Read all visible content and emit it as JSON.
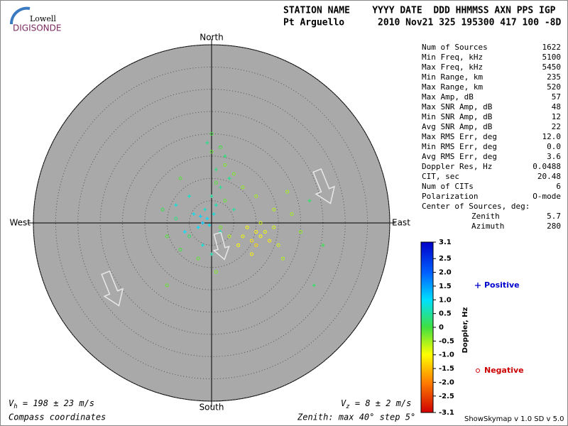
{
  "logo": {
    "top": "Lowell",
    "bottom": "DIGISONDE"
  },
  "header": {
    "labels": "STATION NAME    YYYY DATE  DDD HHMMSS AXN PPS IGP",
    "values": "Pt Arguello      2010 Nov21 325 195300 417 100 -8D"
  },
  "stats": {
    "rows": [
      [
        "Num of Sources",
        "1622"
      ],
      [
        "Min Freq, kHz",
        "5100"
      ],
      [
        "Max Freq, kHz",
        "5450"
      ],
      [
        "Min Range, km",
        "235"
      ],
      [
        "Max Range, km",
        "520"
      ],
      [
        "Max Amp, dB",
        "57"
      ],
      [
        "Max SNR Amp, dB",
        "48"
      ],
      [
        "Min SNR Amp, dB",
        "12"
      ],
      [
        "Avg SNR Amp, dB",
        "22"
      ],
      [
        "Max RMS Err, deg",
        "12.0"
      ],
      [
        "Min RMS Err, deg",
        "0.0"
      ],
      [
        "Avg RMS Err, deg",
        "3.6"
      ],
      [
        "Doppler Res, Hz",
        "0.0488"
      ],
      [
        "CIT, sec",
        "20.48"
      ],
      [
        "Num of CITs",
        "6"
      ],
      [
        "Polarization",
        "O-mode"
      ]
    ],
    "center_title": "Center of Sources, deg:",
    "center_rows": [
      [
        "Zenith",
        "5.7"
      ],
      [
        "Azimuth",
        "280"
      ]
    ]
  },
  "footer": {
    "vh": {
      "symbol": "V",
      "sub": "h",
      "text": " = 198 ± 23 m/s"
    },
    "vz": {
      "symbol": "V",
      "sub": "z",
      "text": " = 8 ± 2 m/s"
    },
    "coords": "Compass coordinates",
    "zenith": "Zenith: max 40°  step 5°",
    "version": "ShowSkymap v 1.0   SD v 5.0"
  },
  "chart_data": {
    "type": "scatter",
    "directions": {
      "north": "North",
      "south": "South",
      "west": "West",
      "east": "East"
    },
    "rlim": [
      0,
      40
    ],
    "rticks": [
      5,
      10,
      15,
      20,
      25,
      30,
      35,
      40
    ],
    "grid": true,
    "colorbar": {
      "label": "Doppler, Hz",
      "clim": [
        -3.1,
        3.1
      ],
      "ticks": [
        3.1,
        2.5,
        {
          "value": 2,
          "label": "2.0"
        },
        1.5,
        {
          "value": 1,
          "label": "1.0"
        },
        0.5,
        0,
        -0.5,
        {
          "value": -1,
          "label": "-1.0"
        },
        -1.5,
        {
          "value": -2,
          "label": "-2.0"
        },
        -2.5,
        -3.1
      ]
    },
    "series": [
      {
        "name": "Positive",
        "marker": "+",
        "color": "#0000cc",
        "x": [
          -1,
          -2,
          -0.5,
          -2.5,
          0.5,
          -3,
          -1.5,
          1,
          0,
          -4,
          2,
          1,
          -1,
          3,
          22,
          25,
          23,
          -8,
          -6,
          5,
          -2,
          0,
          4,
          -5,
          2
        ],
        "y": [
          1,
          0,
          -0.5,
          1.5,
          2,
          -1,
          3,
          4,
          6,
          2,
          8,
          12,
          18,
          15,
          5,
          -5,
          -14,
          4,
          -2,
          3,
          -5,
          -7,
          10,
          6,
          -2
        ],
        "values": [
          1.0,
          1.2,
          0.9,
          1.1,
          0.8,
          1.0,
          0.7,
          0.6,
          0.5,
          0.9,
          0.4,
          0.3,
          0.4,
          0.3,
          0.2,
          0.1,
          0.2,
          0.8,
          1.0,
          0.5,
          0.8,
          0.6,
          0.4,
          0.7,
          0.6
        ]
      },
      {
        "name": "Negative",
        "marker": "o",
        "color": "#cc0000",
        "x": [
          10,
          11,
          9,
          12,
          8,
          13,
          10,
          7,
          14,
          11,
          6,
          9,
          15,
          4,
          2,
          3,
          1,
          3,
          0,
          2,
          5,
          7,
          10,
          14,
          18,
          20,
          -5,
          -8,
          -7,
          -10,
          -3,
          -11,
          1,
          -10,
          16,
          17,
          -7,
          0
        ],
        "y": [
          -2,
          -3,
          -4,
          -2,
          -1,
          -4,
          -5,
          -3,
          -1,
          0,
          -5,
          -7,
          -5,
          -3,
          -1,
          5,
          9,
          13,
          16,
          17,
          11,
          8,
          6,
          3,
          2,
          -2,
          -3,
          1,
          -6,
          -3,
          -8,
          3,
          -11,
          -14,
          -8,
          7,
          10,
          20
        ],
        "values": [
          -1.1,
          -1.0,
          -1.2,
          -0.9,
          -1.0,
          -1.1,
          -1.3,
          -0.9,
          -0.8,
          -0.8,
          -1.0,
          -1.1,
          -0.7,
          -0.6,
          -0.3,
          -0.2,
          -0.1,
          -0.3,
          -0.2,
          0,
          -0.3,
          -0.4,
          -0.5,
          -0.6,
          -0.5,
          -0.4,
          0.2,
          0.3,
          0,
          -0.1,
          -0.2,
          0.1,
          -0.3,
          -0.2,
          -0.6,
          -0.5,
          -0.1,
          0
        ]
      }
    ]
  }
}
